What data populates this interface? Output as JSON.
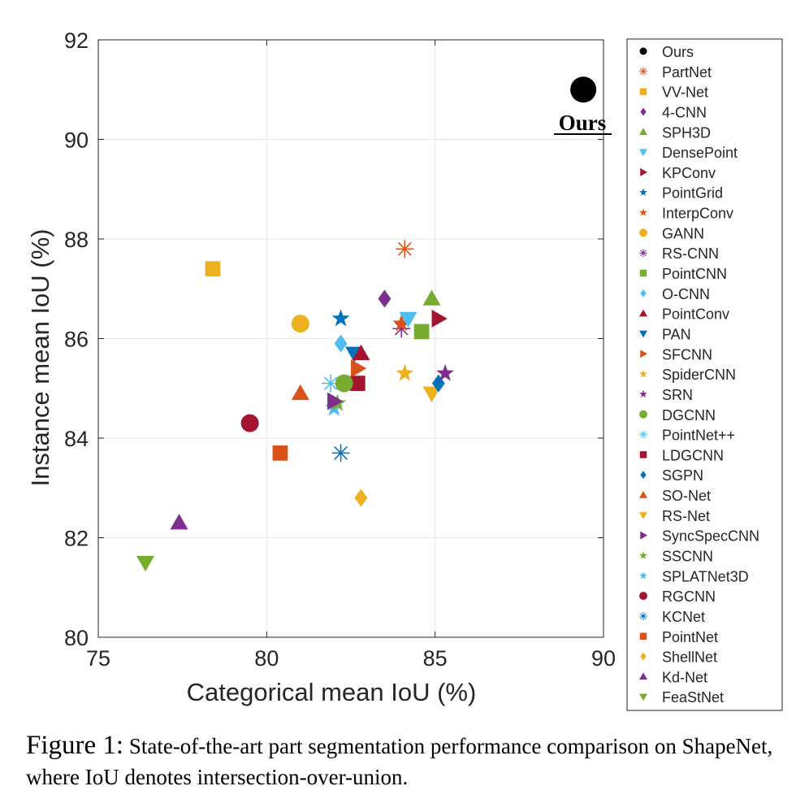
{
  "chart_data": {
    "type": "scatter",
    "xlabel": "Categorical mean IoU (%)",
    "ylabel": "Instance mean IoU (%)",
    "xlim": [
      75,
      90
    ],
    "ylim": [
      80,
      92
    ],
    "xticks": [
      "75",
      "80",
      "85",
      "90"
    ],
    "yticks": [
      "80",
      "82",
      "84",
      "86",
      "88",
      "90",
      "92"
    ],
    "grid": true,
    "legend_position": "right, outside",
    "annotation": {
      "text": "Ours",
      "style": "bold serif underlined"
    },
    "series": [
      {
        "name": "Ours",
        "x": 89.4,
        "y": 91.0,
        "marker": "circle",
        "color": "#000000"
      },
      {
        "name": "PartNet",
        "x": 84.1,
        "y": 87.8,
        "marker": "asterisk",
        "color": "#D95319"
      },
      {
        "name": "VV-Net",
        "x": 78.4,
        "y": 87.4,
        "marker": "square",
        "color": "#EDB120"
      },
      {
        "name": "4-CNN",
        "x": 83.5,
        "y": 86.8,
        "marker": "diamond",
        "color": "#7E2F8E"
      },
      {
        "name": "SPH3D",
        "x": 84.9,
        "y": 86.8,
        "marker": "triangle-up",
        "color": "#77AC30"
      },
      {
        "name": "DensePoint",
        "x": 84.2,
        "y": 86.4,
        "marker": "triangle-down",
        "color": "#4DBEEE"
      },
      {
        "name": "KPConv",
        "x": 85.1,
        "y": 86.4,
        "marker": "triangle-right",
        "color": "#A2142F"
      },
      {
        "name": "PointGrid",
        "x": 82.2,
        "y": 86.4,
        "marker": "star",
        "color": "#0072BD"
      },
      {
        "name": "InterpConv",
        "x": 84.0,
        "y": 86.3,
        "marker": "star",
        "color": "#D95319"
      },
      {
        "name": "GANN",
        "x": 81.0,
        "y": 86.3,
        "marker": "circle",
        "color": "#EDB120"
      },
      {
        "name": "RS-CNN",
        "x": 84.0,
        "y": 86.2,
        "marker": "asterisk",
        "color": "#7E2F8E"
      },
      {
        "name": "PointCNN",
        "x": 84.6,
        "y": 86.14,
        "marker": "square",
        "color": "#77AC30"
      },
      {
        "name": "O-CNN",
        "x": 82.2,
        "y": 85.9,
        "marker": "diamond",
        "color": "#4DBEEE"
      },
      {
        "name": "PointConv",
        "x": 82.8,
        "y": 85.7,
        "marker": "triangle-up",
        "color": "#A2142F"
      },
      {
        "name": "PAN",
        "x": 82.6,
        "y": 85.7,
        "marker": "triangle-down",
        "color": "#0072BD"
      },
      {
        "name": "SFCNN",
        "x": 82.7,
        "y": 85.4,
        "marker": "triangle-right",
        "color": "#D95319"
      },
      {
        "name": "SpiderCNN",
        "x": 84.1,
        "y": 85.3,
        "marker": "star",
        "color": "#EDB120"
      },
      {
        "name": "SRN",
        "x": 85.3,
        "y": 85.3,
        "marker": "star",
        "color": "#7E2F8E"
      },
      {
        "name": "DGCNN",
        "x": 82.3,
        "y": 85.1,
        "marker": "circle",
        "color": "#77AC30"
      },
      {
        "name": "PointNet++",
        "x": 81.9,
        "y": 85.1,
        "marker": "asterisk",
        "color": "#4DBEEE"
      },
      {
        "name": "LDGCNN",
        "x": 82.7,
        "y": 85.1,
        "marker": "square",
        "color": "#A2142F"
      },
      {
        "name": "SGPN",
        "x": 85.1,
        "y": 85.1,
        "marker": "diamond",
        "color": "#0072BD"
      },
      {
        "name": "SO-Net",
        "x": 81.0,
        "y": 84.9,
        "marker": "triangle-up",
        "color": "#D95319"
      },
      {
        "name": "RS-Net",
        "x": 84.9,
        "y": 84.9,
        "marker": "triangle-down",
        "color": "#EDB120"
      },
      {
        "name": "SyncSpecCNN",
        "x": 82.0,
        "y": 84.74,
        "marker": "triangle-right",
        "color": "#7E2F8E"
      },
      {
        "name": "SSCNN",
        "x": 82.1,
        "y": 84.7,
        "marker": "star",
        "color": "#77AC30"
      },
      {
        "name": "SPLATNet3D",
        "x": 82.0,
        "y": 84.6,
        "marker": "star",
        "color": "#4DBEEE"
      },
      {
        "name": "RGCNN",
        "x": 79.5,
        "y": 84.3,
        "marker": "circle",
        "color": "#A2142F"
      },
      {
        "name": "KCNet",
        "x": 82.2,
        "y": 83.7,
        "marker": "asterisk",
        "color": "#0072BD"
      },
      {
        "name": "PointNet",
        "x": 80.4,
        "y": 83.7,
        "marker": "square",
        "color": "#D95319"
      },
      {
        "name": "ShellNet",
        "x": 82.8,
        "y": 82.8,
        "marker": "diamond",
        "color": "#EDB120"
      },
      {
        "name": "Kd-Net",
        "x": 77.4,
        "y": 82.3,
        "marker": "triangle-up",
        "color": "#7E2F8E"
      },
      {
        "name": "FeaStNet",
        "x": 76.4,
        "y": 81.5,
        "marker": "triangle-down",
        "color": "#77AC30"
      }
    ]
  },
  "caption": {
    "label": "Figure 1:",
    "text": "State-of-the-art part segmentation performance comparison on ShapeNet, where IoU denotes intersection-over-union."
  }
}
